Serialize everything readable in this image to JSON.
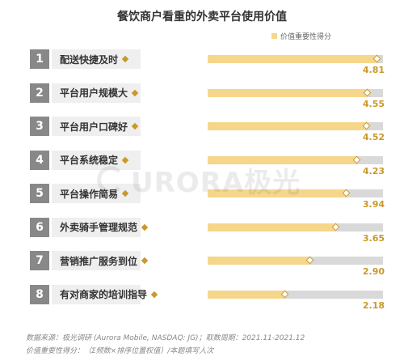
{
  "chart_data": {
    "type": "bar",
    "orientation": "horizontal",
    "title": "餐饮商户看重的外卖平台使用价值",
    "legend": {
      "position": "top-right",
      "label": "价值重要性得分"
    },
    "xlim": [
      0,
      5
    ],
    "grid": false,
    "categories": [
      "配送快捷及时",
      "平台用户规模大",
      "平台用户口碑好",
      "平台系统稳定",
      "平台操作简易",
      "外卖骑手管理规范",
      "营销推广服务到位",
      "有对商家的培训指导"
    ],
    "ranks": [
      "1",
      "2",
      "3",
      "4",
      "5",
      "6",
      "7",
      "8"
    ],
    "series": [
      {
        "name": "价值重要性得分",
        "values": [
          4.81,
          4.55,
          4.52,
          4.23,
          3.94,
          3.65,
          2.9,
          2.18
        ]
      }
    ],
    "value_labels": [
      "4.81",
      "4.55",
      "4.52",
      "4.23",
      "3.94",
      "3.65",
      "2.90",
      "2.18"
    ]
  },
  "colors": {
    "bar_fill": "#f6d68a",
    "bar_track": "#d9d9d9",
    "accent": "#c9992a",
    "rank_box": "#888888",
    "label_box": "#efefef"
  },
  "watermark": {
    "text": "URORA极光"
  },
  "footnotes": {
    "source": "数据来源：极光调研 (Aurora Mobile, NASDAQ: JG)；取数周期：2021.11-2021.12",
    "method": "价值重要性得分：（Σ频数×排序位置权值）/本题填写人次"
  }
}
